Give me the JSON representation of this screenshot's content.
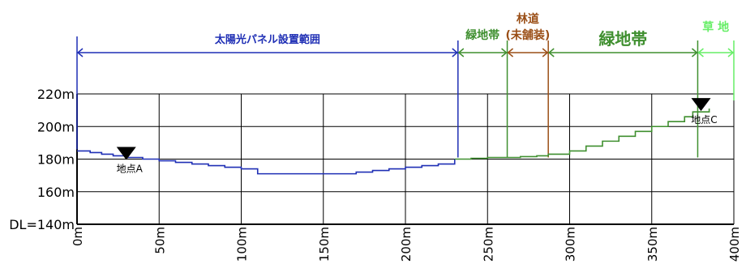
{
  "chart_data": {
    "type": "line",
    "title": "",
    "xlabel": "",
    "ylabel": "",
    "x_range": [
      0,
      400
    ],
    "y_range": [
      140,
      220
    ],
    "x_ticks": [
      0,
      50,
      100,
      150,
      200,
      250,
      300,
      350,
      400
    ],
    "x_tick_labels": [
      "0m",
      "50m",
      "100m",
      "150m",
      "200m",
      "250m",
      "300m",
      "350m",
      "400m"
    ],
    "y_ticks": [
      140,
      160,
      180,
      200,
      220
    ],
    "y_tick_labels": [
      "DL=140m",
      "160m",
      "180m",
      "200m",
      "220m"
    ],
    "grid": true,
    "series": [
      {
        "color": "#1f2fb5",
        "x": [
          0,
          8,
          15,
          22,
          30,
          40,
          50,
          60,
          70,
          80,
          90,
          100,
          110,
          110,
          130,
          150,
          170,
          180,
          190,
          200,
          210,
          220,
          230
        ],
        "y": [
          185,
          184,
          183,
          182,
          181,
          180,
          179,
          178,
          177,
          176,
          175,
          174,
          173,
          171,
          171,
          171,
          172,
          173,
          174,
          175,
          176,
          177,
          180
        ]
      },
      {
        "color": "#3f8f2f",
        "x": [
          230,
          240,
          250,
          262,
          270,
          280,
          287,
          300,
          310,
          320,
          330,
          340,
          350,
          360,
          370,
          375,
          385
        ],
        "y": [
          180,
          180.5,
          181,
          181,
          181.5,
          182,
          183,
          185,
          188,
          191,
          194,
          197,
          200,
          203,
          206,
          209,
          211
        ]
      }
    ],
    "zones": [
      {
        "label": "太陽光パネル設置範囲",
        "start": 0,
        "end": 232,
        "color": "#1f2fb5"
      },
      {
        "label": "緑地帯",
        "start": 232,
        "end": 262,
        "color": "#3f8f2f"
      },
      {
        "label": "林道",
        "label2": "(未舗装)",
        "start": 262,
        "end": 287,
        "color": "#9a4e16"
      },
      {
        "label": "緑地帯",
        "start": 287,
        "end": 378,
        "color": "#3f8f2f"
      },
      {
        "label": "草 地",
        "start": 378,
        "end": 400,
        "color": "#66ee66"
      }
    ],
    "points": [
      {
        "label": "地点A",
        "x": 30,
        "y": 181
      },
      {
        "label": "地点C",
        "x": 380,
        "y": 211
      }
    ]
  }
}
